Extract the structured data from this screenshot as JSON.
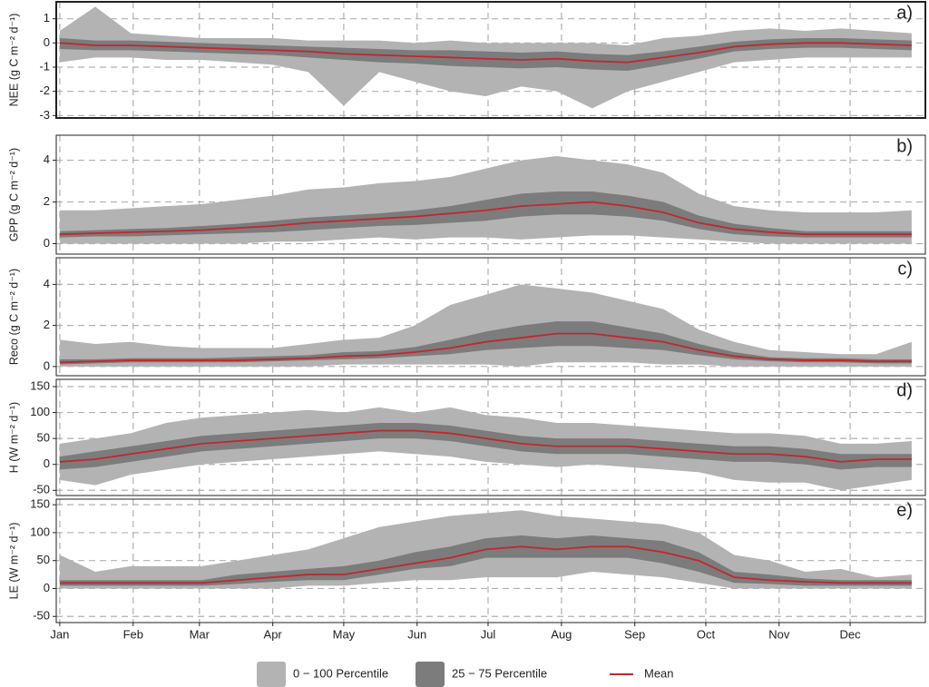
{
  "x_axis": {
    "xlim": [
      -0.5,
      366.8
    ],
    "x": [
      1,
      16,
      31,
      46,
      61,
      76,
      91,
      106,
      121,
      136,
      151,
      166,
      181,
      196,
      211,
      226,
      241,
      256,
      271,
      286,
      301,
      316,
      331,
      346,
      361
    ],
    "xticks": [
      {
        "value": 1,
        "label": "Jan"
      },
      {
        "value": 32,
        "label": "Feb"
      },
      {
        "value": 60,
        "label": "Mar"
      },
      {
        "value": 91,
        "label": "Apr"
      },
      {
        "value": 121,
        "label": "May"
      },
      {
        "value": 152,
        "label": "Jun"
      },
      {
        "value": 182,
        "label": "Jul"
      },
      {
        "value": 213,
        "label": "Aug"
      },
      {
        "value": 244,
        "label": "Sep"
      },
      {
        "value": 274,
        "label": "Oct"
      },
      {
        "value": 305,
        "label": "Nov"
      },
      {
        "value": 335,
        "label": "Dec"
      }
    ]
  },
  "legend": {
    "items": [
      {
        "name": "0 − 100 Percentile",
        "color": "#b3b3b3"
      },
      {
        "name": "25 − 75 Percentile",
        "color": "#7c7c7c"
      },
      {
        "name": "Mean",
        "color": "#c1272d"
      }
    ]
  },
  "chart_data": [
    {
      "type": "band",
      "label": "a)",
      "y_label": "NEE (g C m⁻² d⁻¹)",
      "ylim": [
        -3.1,
        1.7
      ],
      "yticks": [
        -3,
        -2,
        -1,
        0,
        1
      ],
      "grid": true,
      "range": {
        "min": [
          -0.8,
          -0.6,
          -0.6,
          -0.7,
          -0.7,
          -0.8,
          -0.9,
          -1.2,
          -2.6,
          -1.2,
          -1.6,
          -2.0,
          -2.2,
          -1.8,
          -2.0,
          -2.7,
          -2.0,
          -1.6,
          -1.2,
          -0.8,
          -0.7,
          -0.6,
          -0.6,
          -0.6,
          -0.6
        ],
        "max": [
          0.5,
          1.5,
          0.4,
          0.3,
          0.2,
          0.2,
          0.2,
          0.1,
          0.1,
          0.1,
          0.0,
          0.1,
          0.0,
          0.0,
          0.0,
          0.0,
          -0.1,
          0.2,
          0.3,
          0.5,
          0.6,
          0.5,
          0.6,
          0.5,
          0.4
        ]
      },
      "iqr": {
        "p25": [
          -0.25,
          -0.3,
          -0.3,
          -0.35,
          -0.4,
          -0.45,
          -0.5,
          -0.6,
          -0.7,
          -0.8,
          -0.85,
          -0.95,
          -1.0,
          -1.05,
          -1.0,
          -1.1,
          -1.15,
          -0.9,
          -0.65,
          -0.35,
          -0.25,
          -0.2,
          -0.2,
          -0.25,
          -0.3
        ],
        "p75": [
          0.2,
          0.1,
          0.1,
          0.05,
          0.0,
          -0.05,
          -0.1,
          -0.15,
          -0.2,
          -0.25,
          -0.3,
          -0.3,
          -0.35,
          -0.4,
          -0.35,
          -0.45,
          -0.5,
          -0.35,
          -0.15,
          0.05,
          0.15,
          0.2,
          0.2,
          0.15,
          0.1
        ]
      },
      "mean": [
        0,
        -0.1,
        -0.1,
        -0.15,
        -0.2,
        -0.25,
        -0.3,
        -0.35,
        -0.45,
        -0.5,
        -0.55,
        -0.6,
        -0.65,
        -0.7,
        -0.65,
        -0.75,
        -0.8,
        -0.6,
        -0.4,
        -0.15,
        -0.05,
        0,
        0,
        -0.05,
        -0.1
      ]
    },
    {
      "type": "band",
      "label": "b)",
      "y_label": "GPP (g C m⁻² d⁻¹)",
      "ylim": [
        -0.5,
        5.2
      ],
      "yticks": [
        0,
        2,
        4
      ],
      "grid": true,
      "range": {
        "min": [
          0,
          0,
          0,
          0,
          0,
          0,
          0.1,
          0.1,
          0.2,
          0.3,
          0.2,
          0.3,
          0.3,
          0.2,
          0.3,
          0.4,
          0.4,
          0.3,
          0.2,
          0.1,
          0,
          0,
          0,
          0,
          0
        ],
        "max": [
          1.6,
          1.6,
          1.7,
          1.8,
          1.9,
          2.1,
          2.3,
          2.6,
          2.7,
          2.9,
          3.0,
          3.2,
          3.6,
          4.0,
          4.2,
          4.0,
          3.8,
          3.4,
          2.4,
          1.8,
          1.6,
          1.5,
          1.5,
          1.5,
          1.6
        ]
      },
      "iqr": {
        "p25": [
          0.3,
          0.35,
          0.35,
          0.4,
          0.45,
          0.5,
          0.55,
          0.65,
          0.75,
          0.85,
          0.9,
          1.0,
          1.1,
          1.3,
          1.4,
          1.4,
          1.3,
          1.1,
          0.7,
          0.45,
          0.35,
          0.3,
          0.3,
          0.3,
          0.3
        ],
        "p75": [
          0.6,
          0.65,
          0.7,
          0.75,
          0.85,
          0.95,
          1.1,
          1.25,
          1.35,
          1.45,
          1.6,
          1.8,
          2.1,
          2.4,
          2.5,
          2.5,
          2.3,
          2.0,
          1.35,
          0.95,
          0.75,
          0.6,
          0.6,
          0.6,
          0.6
        ]
      },
      "mean": [
        0.45,
        0.5,
        0.55,
        0.6,
        0.65,
        0.75,
        0.85,
        1.0,
        1.1,
        1.2,
        1.3,
        1.45,
        1.6,
        1.8,
        1.9,
        2.0,
        1.8,
        1.5,
        1.0,
        0.7,
        0.55,
        0.45,
        0.45,
        0.45,
        0.45
      ]
    },
    {
      "type": "band",
      "label": "c)",
      "y_label": "Reco (g C m⁻² d⁻¹)",
      "ylim": [
        -0.45,
        5.3
      ],
      "yticks": [
        0,
        2,
        4
      ],
      "grid": true,
      "range": {
        "min": [
          0,
          0,
          0,
          0,
          0,
          0,
          0,
          0,
          0.1,
          0.1,
          0.1,
          0.1,
          0.1,
          0.0,
          0.2,
          0.2,
          0.2,
          0.1,
          0.1,
          0,
          0,
          0,
          0,
          0,
          0
        ],
        "max": [
          1.3,
          1.1,
          1.2,
          1.0,
          0.9,
          0.9,
          0.9,
          1.1,
          1.3,
          1.4,
          2.0,
          3.0,
          3.5,
          4.0,
          3.8,
          3.6,
          3.2,
          2.8,
          1.8,
          1.2,
          0.8,
          0.7,
          0.6,
          0.6,
          1.2
        ]
      },
      "iqr": {
        "p25": [
          0.1,
          0.15,
          0.2,
          0.2,
          0.2,
          0.2,
          0.25,
          0.3,
          0.35,
          0.4,
          0.5,
          0.6,
          0.8,
          0.9,
          1.0,
          1.0,
          0.9,
          0.8,
          0.55,
          0.35,
          0.25,
          0.2,
          0.2,
          0.15,
          0.15
        ],
        "p75": [
          0.35,
          0.35,
          0.4,
          0.4,
          0.4,
          0.45,
          0.5,
          0.55,
          0.7,
          0.75,
          0.95,
          1.3,
          1.7,
          2.0,
          2.2,
          2.2,
          1.9,
          1.6,
          1.1,
          0.7,
          0.45,
          0.4,
          0.4,
          0.35,
          0.35
        ]
      },
      "mean": [
        0.2,
        0.25,
        0.3,
        0.3,
        0.3,
        0.3,
        0.35,
        0.4,
        0.5,
        0.55,
        0.7,
        0.9,
        1.2,
        1.4,
        1.6,
        1.6,
        1.4,
        1.2,
        0.8,
        0.5,
        0.35,
        0.3,
        0.3,
        0.25,
        0.25
      ]
    },
    {
      "type": "band",
      "label": "d)",
      "y_label": "H (W m⁻² d⁻¹)",
      "ylim": [
        -60,
        164
      ],
      "yticks": [
        -50,
        0,
        50,
        100,
        150
      ],
      "grid": true,
      "range": {
        "min": [
          -30,
          -40,
          -20,
          -10,
          0,
          5,
          10,
          15,
          20,
          25,
          20,
          15,
          5,
          0,
          -5,
          0,
          -5,
          -10,
          -15,
          -30,
          -35,
          -35,
          -50,
          -40,
          -30
        ],
        "max": [
          40,
          50,
          60,
          80,
          90,
          95,
          100,
          105,
          100,
          110,
          100,
          110,
          95,
          90,
          80,
          80,
          75,
          70,
          65,
          60,
          60,
          55,
          40,
          40,
          45
        ]
      },
      "iqr": {
        "p25": [
          -10,
          -5,
          5,
          15,
          25,
          30,
          35,
          40,
          45,
          50,
          50,
          45,
          35,
          25,
          20,
          20,
          20,
          15,
          10,
          5,
          5,
          0,
          -10,
          -5,
          -5
        ],
        "p75": [
          15,
          25,
          35,
          45,
          55,
          60,
          65,
          70,
          75,
          80,
          80,
          75,
          65,
          55,
          50,
          50,
          50,
          45,
          40,
          35,
          35,
          30,
          20,
          20,
          20
        ]
      },
      "mean": [
        5,
        10,
        20,
        30,
        40,
        45,
        50,
        55,
        60,
        65,
        65,
        60,
        50,
        40,
        35,
        35,
        35,
        30,
        25,
        20,
        20,
        15,
        5,
        10,
        10
      ]
    },
    {
      "type": "band",
      "label": "e)",
      "y_label": "LE (W m⁻² d⁻¹)",
      "ylim": [
        -61,
        160
      ],
      "yticks": [
        -50,
        0,
        50,
        100,
        150
      ],
      "grid": true,
      "range": {
        "min": [
          0,
          0,
          0,
          0,
          0,
          0,
          0,
          5,
          5,
          10,
          15,
          15,
          20,
          20,
          20,
          30,
          25,
          20,
          10,
          0,
          0,
          0,
          0,
          0,
          0
        ],
        "max": [
          60,
          30,
          40,
          40,
          40,
          50,
          60,
          70,
          90,
          110,
          120,
          130,
          135,
          140,
          130,
          125,
          120,
          115,
          100,
          60,
          50,
          30,
          35,
          20,
          25
        ]
      },
      "iqr": {
        "p25": [
          5,
          5,
          5,
          5,
          5,
          8,
          12,
          15,
          15,
          25,
          35,
          40,
          55,
          55,
          55,
          55,
          55,
          45,
          30,
          10,
          8,
          5,
          5,
          5,
          5
        ],
        "p75": [
          15,
          15,
          15,
          15,
          15,
          25,
          30,
          35,
          40,
          50,
          65,
          75,
          90,
          95,
          90,
          95,
          90,
          85,
          65,
          30,
          25,
          18,
          15,
          15,
          15
        ]
      },
      "mean": [
        10,
        10,
        10,
        10,
        10,
        15,
        20,
        25,
        25,
        35,
        45,
        55,
        70,
        75,
        70,
        75,
        75,
        65,
        50,
        20,
        15,
        12,
        10,
        10,
        10
      ]
    }
  ]
}
